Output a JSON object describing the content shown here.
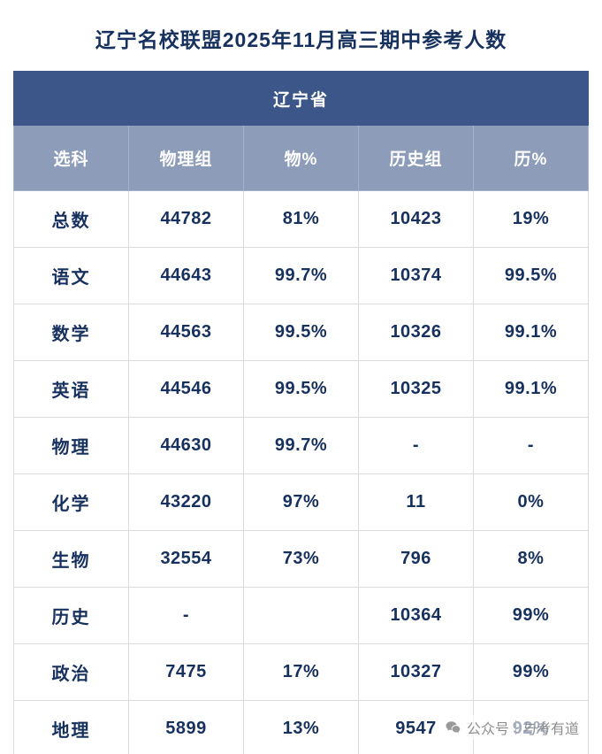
{
  "page": {
    "title": "辽宁名校联盟2025年11月高三期中参考人数"
  },
  "chart_data": {
    "type": "table",
    "title": "辽宁名校联盟2025年11月高三期中参考人数",
    "region_header": "辽宁省",
    "columns": [
      "选科",
      "物理组",
      "物%",
      "历史组",
      "历%"
    ],
    "rows": [
      [
        "总数",
        "44782",
        "81%",
        "10423",
        "19%"
      ],
      [
        "语文",
        "44643",
        "99.7%",
        "10374",
        "99.5%"
      ],
      [
        "数学",
        "44563",
        "99.5%",
        "10326",
        "99.1%"
      ],
      [
        "英语",
        "44546",
        "99.5%",
        "10325",
        "99.1%"
      ],
      [
        "物理",
        "44630",
        "99.7%",
        "-",
        "-"
      ],
      [
        "化学",
        "43220",
        "97%",
        "11",
        "0%"
      ],
      [
        "生物",
        "32554",
        "73%",
        "796",
        "8%"
      ],
      [
        "历史",
        "-",
        "",
        "10364",
        "99%"
      ],
      [
        "政治",
        "7475",
        "17%",
        "10327",
        "99%"
      ],
      [
        "地理",
        "5899",
        "13%",
        "9547",
        "92%"
      ]
    ]
  },
  "watermark": {
    "label": "公众号",
    "account": "与考有道"
  },
  "colors": {
    "title_text": "#17315f",
    "region_header_bg": "#3d5689",
    "column_header_bg": "#8d9cb9",
    "cell_text": "#17315f",
    "cell_border": "#dcdcdc",
    "watermark_text": "#8f8f8f"
  }
}
